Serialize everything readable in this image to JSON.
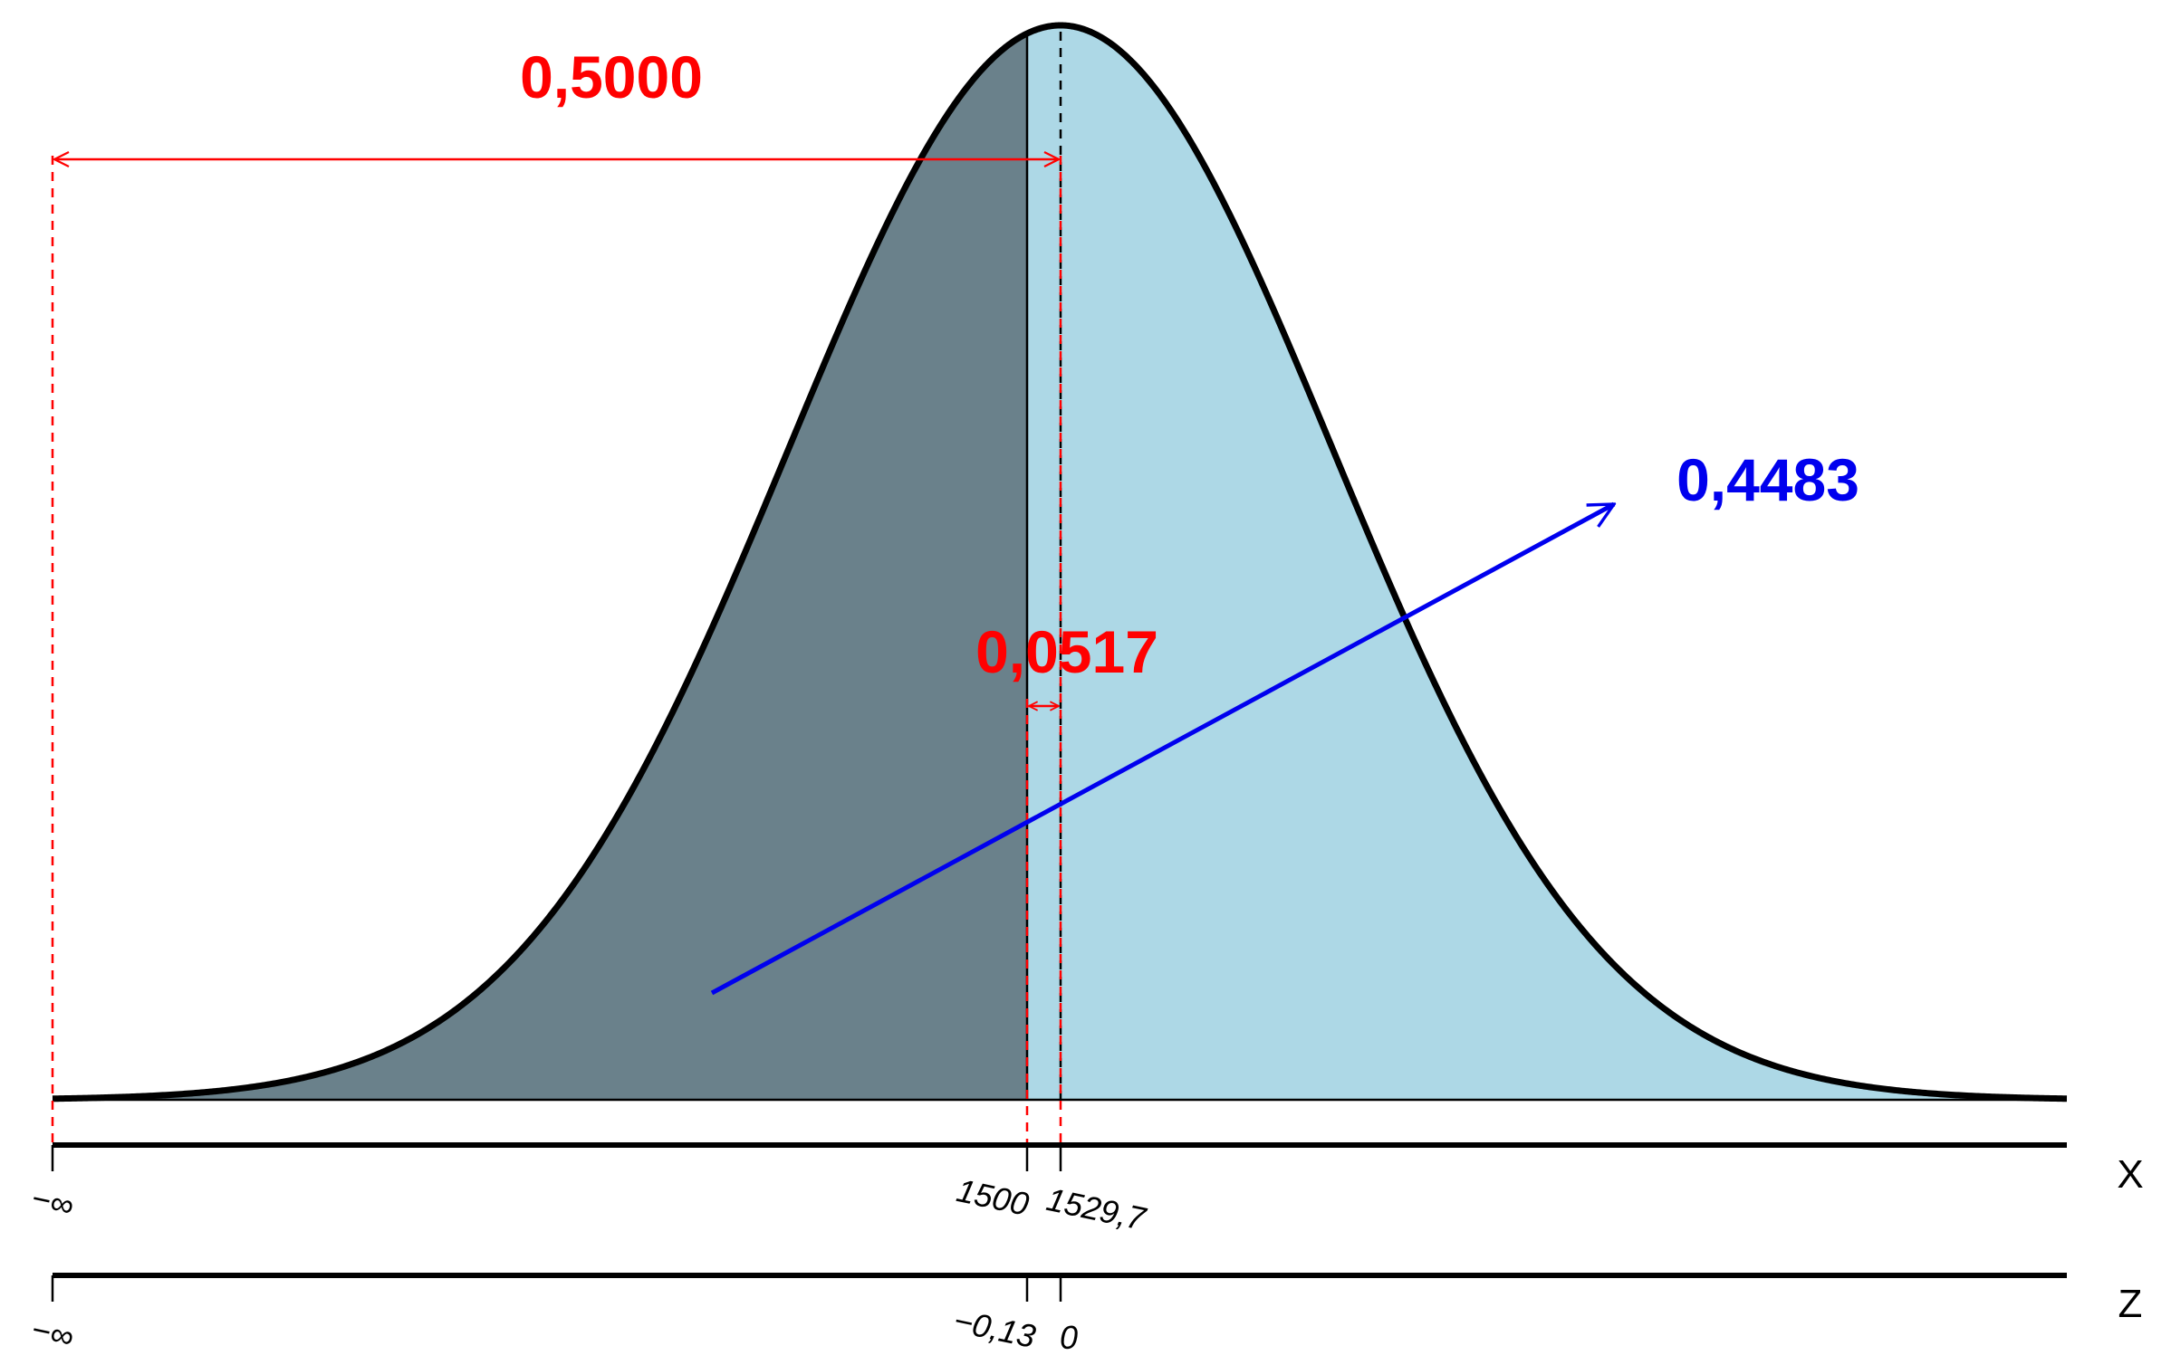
{
  "diagram": {
    "type": "normal-distribution-area",
    "colors": {
      "left_area": "#6a818b",
      "right_area": "#add8e6",
      "curve": "#000000",
      "red": "#ff0000",
      "blue": "#0000ee"
    },
    "labels": {
      "left_probability": "0,5000",
      "middle_probability": "0,0517",
      "right_probability": "0,4483"
    },
    "axes": {
      "x": {
        "name": "X",
        "ticks": [
          "−∞",
          "1500",
          "1529,7"
        ]
      },
      "z": {
        "name": "Z",
        "ticks": [
          "−∞",
          "−0,13",
          "0"
        ]
      }
    }
  }
}
